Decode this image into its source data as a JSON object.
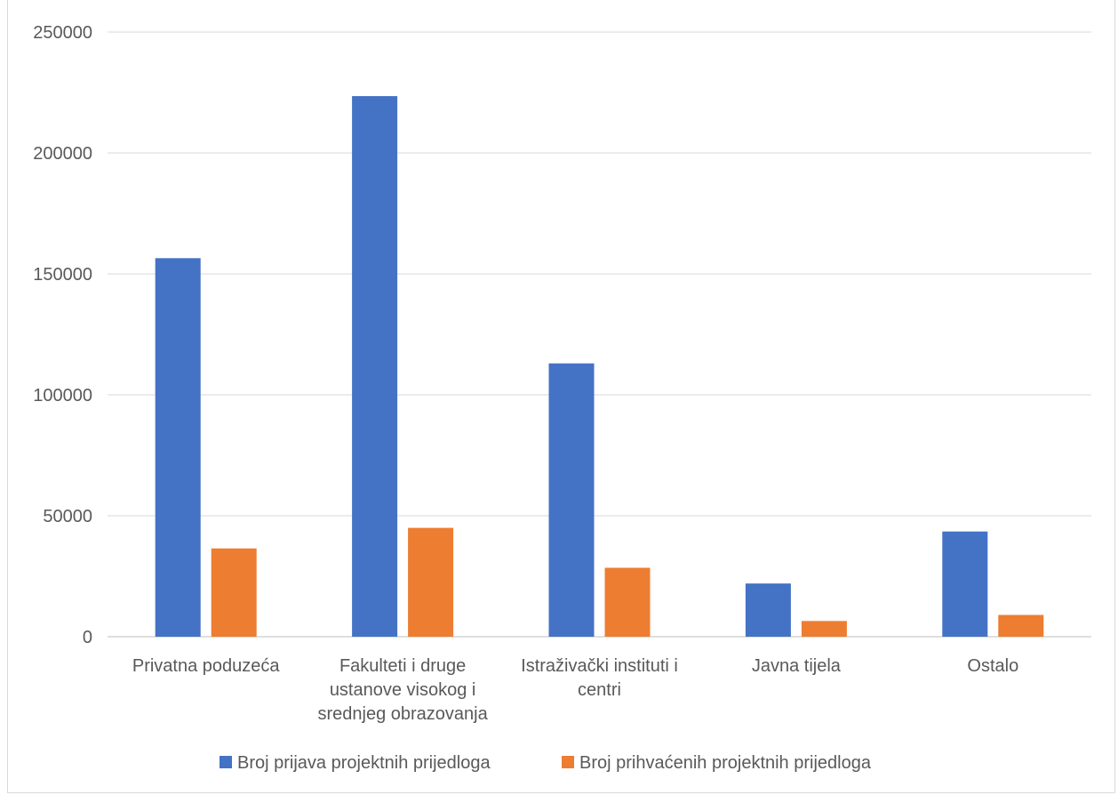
{
  "chart_data": {
    "type": "bar",
    "categories": [
      [
        "Privatna poduzeća"
      ],
      [
        "Fakulteti i druge",
        "ustanove visokog i",
        "srednjeg obrazovanja"
      ],
      [
        "Istraživački instituti i",
        "centri"
      ],
      [
        "Javna tijela"
      ],
      [
        "Ostalo"
      ]
    ],
    "series": [
      {
        "name": "Broj prijava projektnih prijedloga",
        "color": "#4472C4",
        "values": [
          156500,
          223500,
          113000,
          22000,
          43500
        ]
      },
      {
        "name": "Broj prihvaćenih projektnih prijedloga",
        "color": "#ED7D31",
        "values": [
          36500,
          45000,
          28500,
          6500,
          9000
        ]
      }
    ],
    "ylim": [
      0,
      250000
    ],
    "yticks": [
      "0",
      "50000",
      "100000",
      "150000",
      "200000",
      "250000"
    ],
    "grid": true,
    "legend": "bottom"
  }
}
